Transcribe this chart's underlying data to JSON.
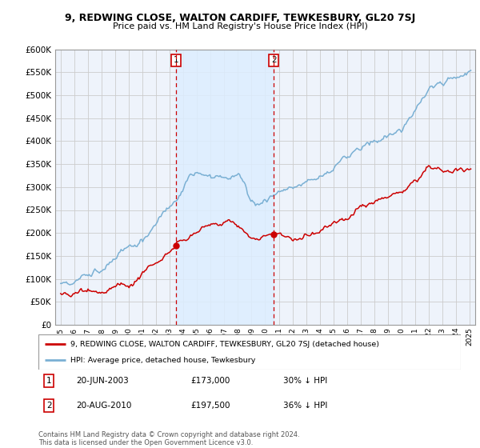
{
  "title": "9, REDWING CLOSE, WALTON CARDIFF, TEWKESBURY, GL20 7SJ",
  "subtitle": "Price paid vs. HM Land Registry's House Price Index (HPI)",
  "ylim": [
    0,
    600000
  ],
  "yticks": [
    0,
    50000,
    100000,
    150000,
    200000,
    250000,
    300000,
    350000,
    400000,
    450000,
    500000,
    550000,
    600000
  ],
  "xlim_start": 1994.6,
  "xlim_end": 2025.4,
  "sale1_x": 2003.47,
  "sale1_y": 173000,
  "sale1_label": "1",
  "sale2_x": 2010.63,
  "sale2_y": 197500,
  "sale2_label": "2",
  "vline1_x": 2003.47,
  "vline2_x": 2010.63,
  "legend_line1": "9, REDWING CLOSE, WALTON CARDIFF, TEWKESBURY, GL20 7SJ (detached house)",
  "legend_line2": "HPI: Average price, detached house, Tewkesbury",
  "table_row1_num": "1",
  "table_row1_date": "20-JUN-2003",
  "table_row1_price": "£173,000",
  "table_row1_hpi": "30% ↓ HPI",
  "table_row2_num": "2",
  "table_row2_date": "20-AUG-2010",
  "table_row2_price": "£197,500",
  "table_row2_hpi": "36% ↓ HPI",
  "footer": "Contains HM Land Registry data © Crown copyright and database right 2024.\nThis data is licensed under the Open Government Licence v3.0.",
  "red_color": "#cc0000",
  "blue_color": "#7ab0d4",
  "shade_color": "#ddeeff",
  "grid_color": "#cccccc",
  "bg_color": "#eef3fb",
  "box_edge_color": "#cc0000"
}
